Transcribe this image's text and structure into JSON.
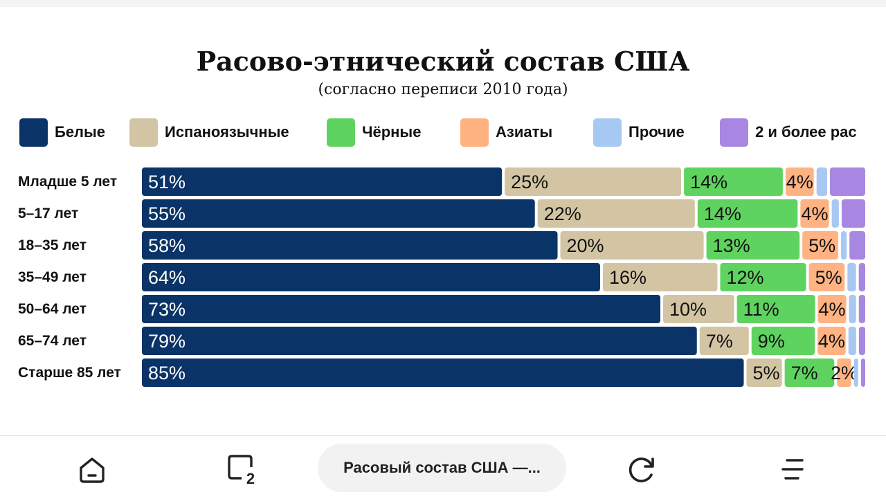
{
  "chart_data": {
    "type": "bar",
    "orientation": "horizontal",
    "stacked": true,
    "title": "Расово-этнический состав США",
    "subtitle": "(согласно переписи 2010 года)",
    "legend_position": "top",
    "categories": [
      "Младше 5 лет",
      "5–17 лет",
      "18–35 лет",
      "35–49 лет",
      "50–64 лет",
      "65–74 лет",
      "Старше 85 лет"
    ],
    "series": [
      {
        "name": "Белые",
        "color": "#0a3468",
        "label_color": "#ffffff",
        "values": [
          51,
          55,
          58,
          64,
          73,
          79,
          85
        ],
        "labels": [
          "51%",
          "55%",
          "58%",
          "64%",
          "73%",
          "79%",
          "85%"
        ]
      },
      {
        "name": "Испаноязычные",
        "color": "#d3c5a3",
        "label_color": "#111111",
        "values": [
          25,
          22,
          20,
          16,
          10,
          7,
          5
        ],
        "labels": [
          "25%",
          "22%",
          "20%",
          "16%",
          "10%",
          "7%",
          "5%"
        ]
      },
      {
        "name": "Чёрные",
        "color": "#5fd35f",
        "label_color": "#111111",
        "values": [
          14,
          14,
          13,
          12,
          11,
          9,
          7
        ],
        "labels": [
          "14%",
          "14%",
          "13%",
          "12%",
          "11%",
          "9%",
          "7%"
        ]
      },
      {
        "name": "Азиаты",
        "color": "#ffb382",
        "label_color": "#111111",
        "values": [
          4,
          4,
          5,
          5,
          4,
          4,
          2
        ],
        "labels": [
          "4%",
          "4%",
          "5%",
          "5%",
          "4%",
          "4%",
          "2%"
        ]
      },
      {
        "name": "Прочие",
        "color": "#a8c8f4",
        "label_color": "#111111",
        "values": [
          1.5,
          1,
          0.8,
          1.2,
          1,
          1.1,
          0.6
        ],
        "labels": [
          "",
          "",
          "",
          "",
          "",
          "",
          ""
        ]
      },
      {
        "name": "2 и более рас",
        "color": "#a887e2",
        "label_color": "#111111",
        "values": [
          5,
          3.3,
          2.2,
          0.9,
          0.9,
          0.9,
          0.6
        ],
        "labels": [
          "",
          "",
          "",
          "",
          "",
          "",
          ""
        ]
      }
    ]
  },
  "bottom_nav": {
    "home_icon": "home-icon",
    "tabs_icon": "tabs-icon",
    "tabs_count": "2",
    "active_tab_title": "Расовый состав США —...",
    "refresh_icon": "refresh-icon",
    "menu_icon": "menu-icon"
  }
}
